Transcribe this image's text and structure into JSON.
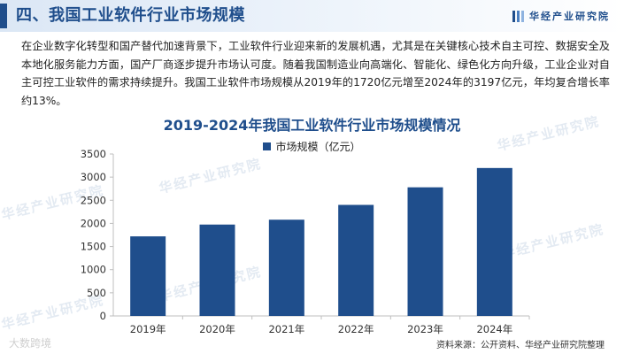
{
  "header": {
    "title": "四、我国工业软件行业市场规模",
    "brand": "华经产业研究院",
    "brand_colors": [
      "#1f4e8c",
      "#4a7fc1",
      "#8fb3e0"
    ]
  },
  "paragraph": "在企业数字化转型和国产替代加速背景下，工业软件行业迎来新的发展机遇，尤其是在关键核心技术自主可控、数据安全及本地化服务能力方面，国产厂商逐步提升市场认可度。随着我国制造业向高端化、智能化、绿色化方向升级，工业企业对自主可控工业软件的需求持续提升。我国工业软件市场规模从2019年的1720亿元增至2024年的3197亿元，年均复合增长率约13%。",
  "watermark": "华经产业研究院",
  "source": "资料来源：公开资料、华经产业研究院整理",
  "credit": "大数跨境",
  "chart_data": {
    "type": "bar",
    "title": "2019-2024年我国工业软件行业市场规模情况",
    "categories": [
      "2019年",
      "2020年",
      "2021年",
      "2022年",
      "2023年",
      "2024年"
    ],
    "series": [
      {
        "name": "市场规模（亿元）",
        "values": [
          1720,
          1975,
          2080,
          2400,
          2780,
          3197
        ]
      }
    ],
    "ylim": [
      0,
      3500
    ],
    "yticks": [
      0,
      500,
      1000,
      1500,
      2000,
      2500,
      3000,
      3500
    ],
    "legend_position": "top-center",
    "grid": false,
    "bar_color": "#1f4e8c"
  }
}
